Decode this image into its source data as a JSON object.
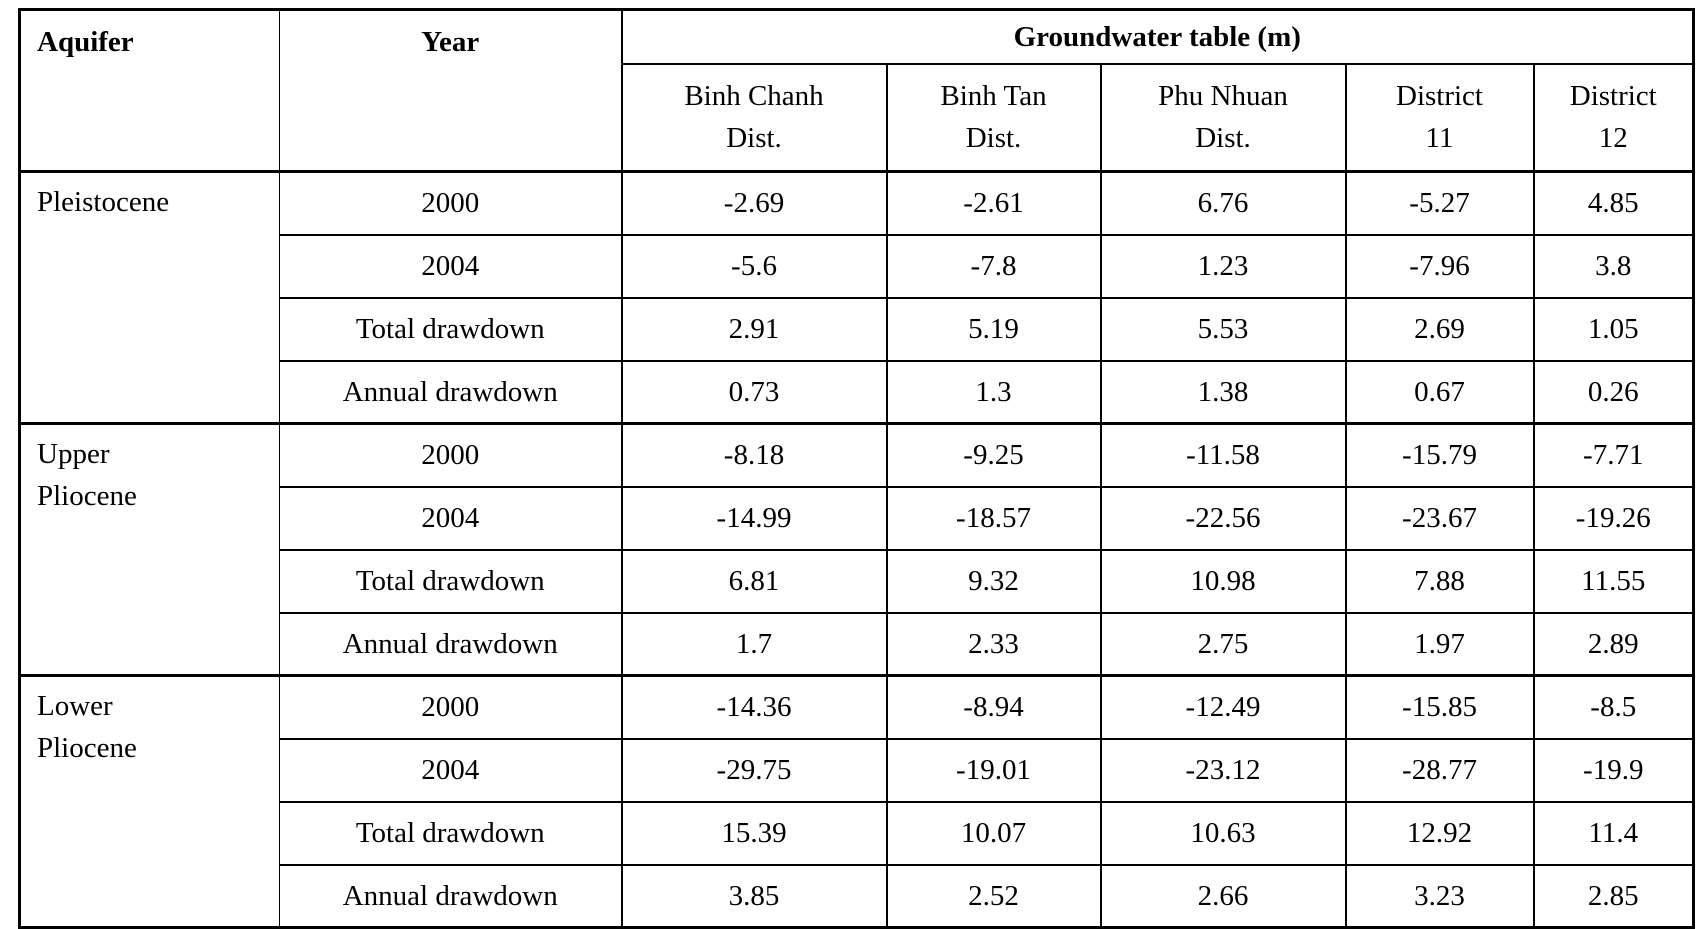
{
  "table": {
    "header": {
      "aquifer_label": "Aquifer",
      "year_label": "Year",
      "group_label": "Groundwater table (m)",
      "columns": [
        "Binh Chanh\nDist.",
        "Binh Tan\nDist.",
        "Phu Nhuan\nDist.",
        "District\n11",
        "District\n12"
      ]
    },
    "sections": [
      {
        "aquifer": "Pleistocene",
        "rows": [
          {
            "label": "2000",
            "values": [
              "-2.69",
              "-2.61",
              "6.76",
              "-5.27",
              "4.85"
            ]
          },
          {
            "label": "2004",
            "values": [
              "-5.6",
              "-7.8",
              "1.23",
              "-7.96",
              "3.8"
            ]
          },
          {
            "label": "Total drawdown",
            "values": [
              "2.91",
              "5.19",
              "5.53",
              "2.69",
              "1.05"
            ]
          },
          {
            "label": "Annual drawdown",
            "values": [
              "0.73",
              "1.3",
              "1.38",
              "0.67",
              "0.26"
            ]
          }
        ]
      },
      {
        "aquifer": "Upper\nPliocene",
        "rows": [
          {
            "label": "2000",
            "values": [
              "-8.18",
              "-9.25",
              "-11.58",
              "-15.79",
              "-7.71"
            ]
          },
          {
            "label": "2004",
            "values": [
              "-14.99",
              "-18.57",
              "-22.56",
              "-23.67",
              "-19.26"
            ]
          },
          {
            "label": "Total drawdown",
            "values": [
              "6.81",
              "9.32",
              "10.98",
              "7.88",
              "11.55"
            ]
          },
          {
            "label": "Annual drawdown",
            "values": [
              "1.7",
              "2.33",
              "2.75",
              "1.97",
              "2.89"
            ]
          }
        ]
      },
      {
        "aquifer": "Lower\nPliocene",
        "rows": [
          {
            "label": "2000",
            "values": [
              "-14.36",
              "-8.94",
              "-12.49",
              "-15.85",
              "-8.5"
            ]
          },
          {
            "label": "2004",
            "values": [
              "-29.75",
              "-19.01",
              "-23.12",
              "-28.77",
              "-19.9"
            ]
          },
          {
            "label": "Total drawdown",
            "values": [
              "15.39",
              "10.07",
              "10.63",
              "12.92",
              "11.4"
            ]
          },
          {
            "label": "Annual drawdown",
            "values": [
              "3.85",
              "2.52",
              "2.66",
              "3.23",
              "2.85"
            ]
          }
        ]
      }
    ]
  },
  "chart_data": {
    "type": "table",
    "title": "Groundwater table (m)",
    "columns": [
      "Binh Chanh Dist.",
      "Binh Tan Dist.",
      "Phu Nhuan Dist.",
      "District 11",
      "District 12"
    ],
    "series": [
      {
        "name": "Pleistocene 2000",
        "values": [
          -2.69,
          -2.61,
          6.76,
          -5.27,
          4.85
        ]
      },
      {
        "name": "Pleistocene 2004",
        "values": [
          -5.6,
          -7.8,
          1.23,
          -7.96,
          3.8
        ]
      },
      {
        "name": "Pleistocene Total drawdown",
        "values": [
          2.91,
          5.19,
          5.53,
          2.69,
          1.05
        ]
      },
      {
        "name": "Pleistocene Annual drawdown",
        "values": [
          0.73,
          1.3,
          1.38,
          0.67,
          0.26
        ]
      },
      {
        "name": "Upper Pliocene 2000",
        "values": [
          -8.18,
          -9.25,
          -11.58,
          -15.79,
          -7.71
        ]
      },
      {
        "name": "Upper Pliocene 2004",
        "values": [
          -14.99,
          -18.57,
          -22.56,
          -23.67,
          -19.26
        ]
      },
      {
        "name": "Upper Pliocene Total drawdown",
        "values": [
          6.81,
          9.32,
          10.98,
          7.88,
          11.55
        ]
      },
      {
        "name": "Upper Pliocene Annual drawdown",
        "values": [
          1.7,
          2.33,
          2.75,
          1.97,
          2.89
        ]
      },
      {
        "name": "Lower Pliocene 2000",
        "values": [
          -14.36,
          -8.94,
          -12.49,
          -15.85,
          -8.5
        ]
      },
      {
        "name": "Lower Pliocene 2004",
        "values": [
          -29.75,
          -19.01,
          -23.12,
          -28.77,
          -19.9
        ]
      },
      {
        "name": "Lower Pliocene Total drawdown",
        "values": [
          15.39,
          10.07,
          10.63,
          12.92,
          11.4
        ]
      },
      {
        "name": "Lower Pliocene Annual drawdown",
        "values": [
          3.85,
          2.52,
          2.66,
          3.23,
          2.85
        ]
      }
    ]
  },
  "colors": {
    "border": "#000000",
    "background": "#ffffff",
    "text": "#000000"
  }
}
